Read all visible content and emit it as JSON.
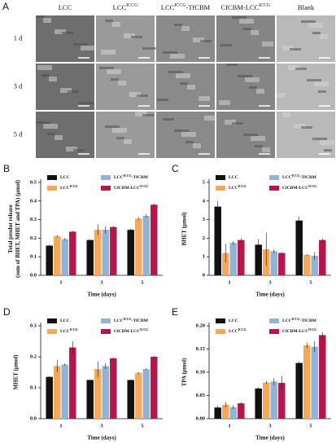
{
  "panel_a": {
    "letter": "A",
    "columns": [
      {
        "name": "LCC"
      },
      {
        "name": "LCC",
        "sup": "ICCG"
      },
      {
        "name": "LCC",
        "sup": "ICCG",
        "suffix": "-TfCBM"
      },
      {
        "name": "CfCBM-LCC",
        "sup": "ICCG"
      },
      {
        "name": "Blank"
      }
    ],
    "rows": [
      "1 d",
      "3 d",
      "5 d"
    ]
  },
  "chart_data": [
    {
      "type": "bar",
      "letter": "B",
      "ylabel": [
        "Total produt release",
        "(sum of BHET, MHET and TPA) (μmol)"
      ],
      "xlabel": "Time (days)",
      "categories": [
        "1",
        "3",
        "5"
      ],
      "ylim": [
        0,
        0.5
      ],
      "yticks": [
        {
          "value": 0,
          "label": "0.0"
        },
        0.1,
        0.2,
        0.3,
        0.4,
        0.5
      ],
      "series": [
        {
          "name": "LCC",
          "color": "#111111",
          "values": [
            0.16,
            0.19,
            0.245
          ],
          "errors": [
            0.005,
            0.005,
            0.006
          ]
        },
        {
          "name": "LCC",
          "sup": "ICCG",
          "color": "#f5a85a",
          "values": [
            0.21,
            0.245,
            0.305
          ],
          "errors": [
            0.006,
            0.03,
            0.008
          ]
        },
        {
          "name": "LCC",
          "sup": "ICCG",
          "suffix": "-TfCBM",
          "color": "#92b3d8",
          "values": [
            0.195,
            0.245,
            0.32
          ],
          "errors": [
            0.006,
            0.02,
            0.01
          ]
        },
        {
          "name": "CfCBM-LCC",
          "sup": "ICCG",
          "color": "#b5174d",
          "values": [
            0.235,
            0.26,
            0.38
          ],
          "errors": [
            0.004,
            0.005,
            0.006
          ]
        }
      ]
    },
    {
      "type": "bar",
      "letter": "C",
      "ylabel": [
        "BHET (μmol)"
      ],
      "xlabel": "Time (days)",
      "categories": [
        "1",
        "3",
        "5"
      ],
      "ylim": [
        0,
        5
      ],
      "yticks": [
        0,
        1,
        2,
        3,
        4,
        5
      ],
      "series": [
        {
          "name": "LCC",
          "color": "#111111",
          "values": [
            3.7,
            1.65,
            2.95
          ],
          "errors": [
            0.3,
            0.3,
            0.2
          ]
        },
        {
          "name": "LCC",
          "sup": "ICCG",
          "color": "#f5a85a",
          "values": [
            1.2,
            1.4,
            1.1
          ],
          "errors": [
            0.5,
            0.9,
            0.05
          ]
        },
        {
          "name": "LCC",
          "sup": "ICCG",
          "suffix": "-TfCBM",
          "color": "#92b3d8",
          "values": [
            1.75,
            1.3,
            1.05
          ],
          "errors": [
            0.1,
            0.1,
            0.2
          ]
        },
        {
          "name": "CfCBM-LCC",
          "sup": "ICCG",
          "color": "#b5174d",
          "values": [
            1.9,
            1.2,
            1.9
          ],
          "errors": [
            0.1,
            0.05,
            0.08
          ]
        }
      ]
    },
    {
      "type": "bar",
      "letter": "D",
      "ylabel": [
        "MHET (μmol)"
      ],
      "xlabel": "Time (days)",
      "categories": [
        "1",
        "3",
        "5"
      ],
      "ylim": [
        0,
        0.3
      ],
      "yticks": [
        {
          "value": 0,
          "label": "0.0"
        },
        0.1,
        0.2,
        0.3
      ],
      "series": [
        {
          "name": "LCC",
          "color": "#111111",
          "values": [
            0.135,
            0.125,
            0.125
          ],
          "errors": [
            0.002,
            0.002,
            0.002
          ]
        },
        {
          "name": "LCC",
          "sup": "ICCG",
          "color": "#f5a85a",
          "values": [
            0.17,
            0.16,
            0.148
          ],
          "errors": [
            0.02,
            0.025,
            0.003
          ]
        },
        {
          "name": "LCC",
          "sup": "ICCG",
          "suffix": "-TfCBM",
          "color": "#92b3d8",
          "values": [
            0.175,
            0.17,
            0.16
          ],
          "errors": [
            0.004,
            0.01,
            0.003
          ]
        },
        {
          "name": "CfCBM-LCC",
          "sup": "ICCG",
          "color": "#b5174d",
          "values": [
            0.23,
            0.195,
            0.2
          ],
          "errors": [
            0.02,
            0.003,
            0.002
          ]
        }
      ]
    },
    {
      "type": "bar",
      "letter": "E",
      "ylabel": [
        "TPA (μmol)"
      ],
      "xlabel": "Time (days)",
      "categories": [
        "1",
        "3",
        "5"
      ],
      "ylim": [
        0,
        0.2
      ],
      "yticks": [
        {
          "value": 0,
          "label": "0.00"
        },
        0.05,
        {
          "value": 0.1,
          "label": "0.10"
        },
        0.15,
        {
          "value": 0.2,
          "label": "0.20"
        }
      ],
      "series": [
        {
          "name": "LCC",
          "color": "#111111",
          "values": [
            0.024,
            0.065,
            0.12
          ],
          "errors": [
            0.004,
            0.003,
            0.003
          ]
        },
        {
          "name": "LCC",
          "sup": "ICCG",
          "color": "#f5a85a",
          "values": [
            0.03,
            0.078,
            0.158
          ],
          "errors": [
            0.006,
            0.003,
            0.006
          ]
        },
        {
          "name": "LCC",
          "sup": "ICCG",
          "suffix": "-TfCBM",
          "color": "#92b3d8",
          "values": [
            0.025,
            0.08,
            0.155
          ],
          "errors": [
            0.004,
            0.008,
            0.012
          ]
        },
        {
          "name": "CfCBM-LCC",
          "sup": "ICCG",
          "color": "#b5174d",
          "values": [
            0.033,
            0.077,
            0.18
          ],
          "errors": [
            0.003,
            0.015,
            0.006
          ]
        }
      ]
    }
  ]
}
